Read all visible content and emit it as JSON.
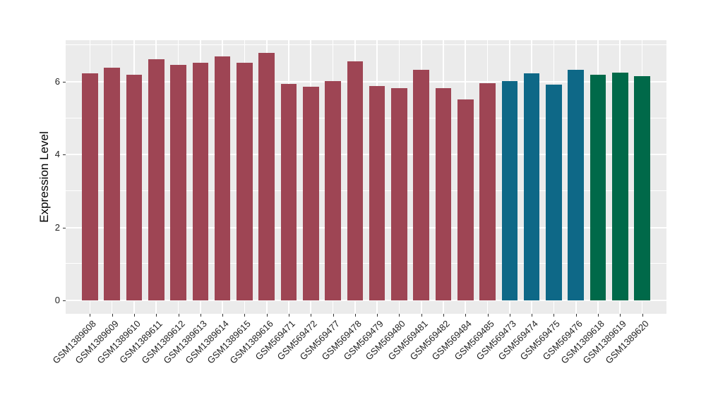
{
  "figure": {
    "background": "#FFFFFF",
    "panel_background": "#EBEBEB",
    "grid_color": "#FFFFFF",
    "tick_color": "#333333"
  },
  "chart_data": {
    "type": "bar",
    "title": "",
    "xlabel": "",
    "ylabel": "Expression Level",
    "ylim": [
      0,
      7.14
    ],
    "yticks": [
      0,
      2,
      4,
      6
    ],
    "yticks_minor": [
      1,
      3,
      5,
      7
    ],
    "grid": true,
    "legend_position": "none",
    "categories": [
      "GSM1389608",
      "GSM1389609",
      "GSM1389610",
      "GSM1389611",
      "GSM1389612",
      "GSM1389613",
      "GSM1389614",
      "GSM1389615",
      "GSM1389616",
      "GSM569471",
      "GSM569472",
      "GSM569477",
      "GSM569478",
      "GSM569479",
      "GSM569480",
      "GSM569481",
      "GSM569482",
      "GSM569484",
      "GSM569485",
      "GSM569473",
      "GSM569474",
      "GSM569475",
      "GSM569476",
      "GSM1389618",
      "GSM1389619",
      "GSM1389620"
    ],
    "values": [
      6.22,
      6.38,
      6.19,
      6.61,
      6.46,
      6.51,
      6.69,
      6.51,
      6.79,
      5.94,
      5.87,
      6.02,
      6.56,
      5.88,
      5.82,
      6.32,
      5.82,
      5.51,
      5.96,
      6.02,
      6.22,
      5.91,
      6.33,
      6.19,
      6.25,
      6.16
    ],
    "groups": [
      "groupA",
      "groupA",
      "groupA",
      "groupA",
      "groupA",
      "groupA",
      "groupA",
      "groupA",
      "groupA",
      "groupA",
      "groupA",
      "groupA",
      "groupA",
      "groupA",
      "groupA",
      "groupA",
      "groupA",
      "groupA",
      "groupA",
      "groupB",
      "groupB",
      "groupB",
      "groupB",
      "groupC",
      "groupC",
      "groupC"
    ],
    "palette": {
      "groupA": "#9E4554",
      "groupB": "#0E6887",
      "groupC": "#006949"
    }
  }
}
